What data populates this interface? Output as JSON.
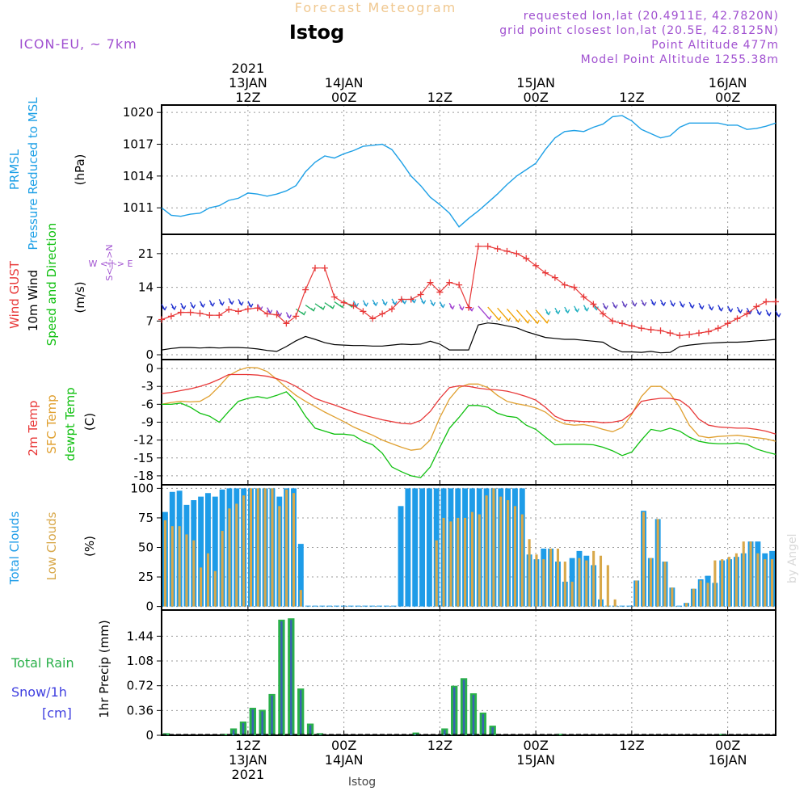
{
  "header": {
    "title": "Forecast Meteogram",
    "location": "Istog",
    "model": "ICON-EU, ~ 7km",
    "requested_point": "requested lon,lat (20.4911E, 42.7820N)",
    "grid_point": "grid point closest lon,lat (20.5E, 42.8125N)",
    "point_altitude": "Point Altitude 477m",
    "model_altitude": "Model Point Altitude 1255.38m",
    "credit": "by Angel",
    "footer_location": "Istog"
  },
  "colors": {
    "pressure": "#1ea0e6",
    "gust": "#e83838",
    "wind": "#000000",
    "temp2m": "#e83838",
    "sfc": "#e0a030",
    "dewpt": "#10c010",
    "total_clouds": "#1e9ce8",
    "low_clouds": "#d8a84a",
    "rain": "#2ab04a",
    "snow": "#4040e0",
    "meta": "#a050d0"
  },
  "time_axis": {
    "start_hour": 0,
    "end_hour": 64,
    "top_labels": [
      {
        "hour": 9,
        "lines": [
          "2021",
          "13JAN",
          "12Z"
        ]
      },
      {
        "hour": 19,
        "lines": [
          "14JAN",
          "00Z"
        ]
      },
      {
        "hour": 29,
        "lines": [
          "12Z"
        ]
      },
      {
        "hour": 39,
        "lines": [
          "15JAN",
          "00Z"
        ]
      },
      {
        "hour": 49,
        "lines": [
          "12Z"
        ]
      },
      {
        "hour": 59,
        "lines": [
          "16JAN",
          "00Z"
        ]
      }
    ],
    "bottom_labels": [
      {
        "hour": 9,
        "lines": [
          "12Z",
          "13JAN",
          "2021"
        ]
      },
      {
        "hour": 19,
        "lines": [
          "00Z",
          "14JAN"
        ]
      },
      {
        "hour": 29,
        "lines": [
          "12Z"
        ]
      },
      {
        "hour": 39,
        "lines": [
          "00Z",
          "15JAN"
        ]
      },
      {
        "hour": 49,
        "lines": [
          "12Z"
        ]
      },
      {
        "hour": 59,
        "lines": [
          "00Z",
          "16JAN"
        ]
      }
    ]
  },
  "chart_data": [
    {
      "type": "line",
      "name": "pressure",
      "ylabels": [
        {
          "text": "PRMSL",
          "color": "#1ea0e6"
        },
        {
          "text": "Pressure Reduced to MSL",
          "color": "#1ea0e6"
        },
        {
          "text": "(hPa)",
          "color": "#000000"
        }
      ],
      "ylim": [
        1008.5,
        1020.7
      ],
      "yticks": [
        1011,
        1014,
        1017,
        1020
      ],
      "series": [
        {
          "name": "PRMSL",
          "values": [
            1011.0,
            1010.3,
            1010.2,
            1010.4,
            1010.5,
            1011.0,
            1011.2,
            1011.7,
            1011.9,
            1012.4,
            1012.3,
            1012.1,
            1012.3,
            1012.6,
            1013.1,
            1014.4,
            1015.3,
            1015.9,
            1015.7,
            1016.1,
            1016.4,
            1016.8,
            1016.9,
            1017.0,
            1016.5,
            1015.3,
            1014.0,
            1013.1,
            1012.0,
            1011.3,
            1010.5,
            1009.2,
            1010.0,
            1010.7,
            1011.5,
            1012.3,
            1013.2,
            1014.0,
            1014.6,
            1015.2,
            1016.5,
            1017.6,
            1018.2,
            1018.3,
            1018.2,
            1018.6,
            1018.9,
            1019.6,
            1019.7,
            1019.2,
            1018.4,
            1018.0,
            1017.6,
            1017.8,
            1018.6,
            1019.0,
            1019.0,
            1019.0,
            1019.0,
            1018.8,
            1018.8,
            1018.4,
            1018.5,
            1018.7,
            1019.0
          ]
        }
      ]
    },
    {
      "type": "line",
      "name": "wind",
      "ylabels": [
        {
          "text": "Wind GUST",
          "color": "#e83838"
        },
        {
          "text": "10m Wind",
          "color": "#000000"
        },
        {
          "text": "Speed and Direction",
          "color": "#10c010"
        },
        {
          "text": "(m/s)",
          "color": "#000000"
        }
      ],
      "ylim": [
        -1,
        25
      ],
      "yticks": [
        0,
        7,
        14,
        21
      ],
      "compass": [
        "N",
        "W",
        "E",
        "S"
      ],
      "series": [
        {
          "name": "Wind GUST",
          "values": [
            7.3,
            8.0,
            8.8,
            8.8,
            8.6,
            8.2,
            8.2,
            9.4,
            9.0,
            9.5,
            9.7,
            8.5,
            8.3,
            6.5,
            8.0,
            13.5,
            18.0,
            18.0,
            12.0,
            10.8,
            10.2,
            9.0,
            7.5,
            8.5,
            9.5,
            11.5,
            11.5,
            12.5,
            15.0,
            13.0,
            15.0,
            14.5,
            9.8,
            22.5,
            22.5,
            22.0,
            21.5,
            21.0,
            20.0,
            18.5,
            17.0,
            16.0,
            14.5,
            14.0,
            12.0,
            10.5,
            8.5,
            7.0,
            6.5,
            6.0,
            5.5,
            5.2,
            5.0,
            4.5,
            4.0,
            4.2,
            4.5,
            4.8,
            5.5,
            6.5,
            7.5,
            8.5,
            10.0,
            11.0,
            11.0
          ]
        },
        {
          "name": "10m Wind",
          "values": [
            1.0,
            1.3,
            1.5,
            1.5,
            1.4,
            1.5,
            1.4,
            1.5,
            1.5,
            1.4,
            1.2,
            0.9,
            0.7,
            1.7,
            2.9,
            3.8,
            3.2,
            2.5,
            2.1,
            2.0,
            1.9,
            1.9,
            1.8,
            1.8,
            2.0,
            2.2,
            2.1,
            2.2,
            2.8,
            2.2,
            1.0,
            1.0,
            1.0,
            6.2,
            6.6,
            6.4,
            6.0,
            5.6,
            4.8,
            4.2,
            3.6,
            3.4,
            3.2,
            3.2,
            3.0,
            2.8,
            2.6,
            1.4,
            0.6,
            0.6,
            0.5,
            0.7,
            0.4,
            0.5,
            1.7,
            2.0,
            2.2,
            2.4,
            2.5,
            2.6,
            2.6,
            2.7,
            2.9,
            3.0,
            3.2
          ]
        },
        {
          "name": "Speed and Direction",
          "values": [
            10.5,
            10.6,
            10.7,
            10.9,
            11.1,
            11.3,
            11.5,
            11.7,
            11.5,
            11.1,
            10.5,
            9.8,
            9.2,
            8.8,
            9.5,
            10.3,
            10.6,
            10.8,
            11.0,
            11.1,
            11.2,
            11.3,
            11.4,
            11.5,
            11.6,
            11.8,
            12.0,
            11.8,
            11.4,
            11.0,
            10.7,
            10.5,
            10.3,
            10.1,
            9.9,
            9.7,
            9.5,
            9.3,
            9.2,
            9.3,
            9.5,
            9.7,
            9.9,
            10.1,
            10.3,
            10.5,
            10.7,
            10.9,
            11.1,
            11.3,
            11.4,
            11.5,
            11.4,
            11.3,
            11.1,
            10.9,
            10.7,
            10.5,
            10.3,
            10.1,
            9.9,
            9.7,
            9.5,
            9.3,
            9.1
          ]
        }
      ]
    },
    {
      "type": "line",
      "name": "temperature",
      "ylabels": [
        {
          "text": "2m Temp",
          "color": "#e83838"
        },
        {
          "text": "SFC Temp",
          "color": "#e0a030"
        },
        {
          "text": "dewpt Temp",
          "color": "#10c010"
        },
        {
          "text": "(C)",
          "color": "#000000"
        }
      ],
      "ylim": [
        -19.5,
        1.5
      ],
      "yticks": [
        0,
        -3,
        -6,
        -9,
        -12,
        -15,
        -18
      ],
      "series": [
        {
          "name": "2m Temp",
          "values": [
            -4.2,
            -4.0,
            -3.7,
            -3.4,
            -3.0,
            -2.5,
            -1.8,
            -1.0,
            -1.0,
            -1.0,
            -1.1,
            -1.3,
            -1.7,
            -2.2,
            -3.0,
            -4.0,
            -5.0,
            -5.6,
            -6.1,
            -6.7,
            -7.3,
            -7.8,
            -8.2,
            -8.6,
            -8.9,
            -9.2,
            -9.3,
            -8.7,
            -7.2,
            -5.0,
            -3.2,
            -2.9,
            -3.0,
            -3.3,
            -3.5,
            -3.6,
            -3.8,
            -4.2,
            -4.7,
            -5.3,
            -6.5,
            -8.0,
            -8.7,
            -8.8,
            -8.9,
            -8.9,
            -9.1,
            -9.0,
            -8.7,
            -7.5,
            -5.5,
            -5.2,
            -5.0,
            -5.0,
            -5.3,
            -6.5,
            -8.5,
            -9.5,
            -9.8,
            -9.9,
            -10.0,
            -10.0,
            -10.2,
            -10.5,
            -11.0
          ]
        },
        {
          "name": "SFC Temp",
          "values": [
            -6.0,
            -5.7,
            -5.5,
            -5.6,
            -5.5,
            -4.6,
            -3.0,
            -1.2,
            -0.3,
            0.2,
            0.1,
            -0.5,
            -1.8,
            -3.2,
            -4.5,
            -5.5,
            -6.4,
            -7.3,
            -8.1,
            -8.9,
            -9.8,
            -10.5,
            -11.2,
            -12.0,
            -12.6,
            -13.2,
            -13.7,
            -13.5,
            -12.0,
            -8.2,
            -5.1,
            -3.2,
            -2.6,
            -2.6,
            -3.2,
            -4.5,
            -5.5,
            -5.9,
            -6.2,
            -6.6,
            -7.3,
            -8.6,
            -9.3,
            -9.5,
            -9.4,
            -9.7,
            -10.2,
            -10.6,
            -9.9,
            -7.7,
            -4.7,
            -3.0,
            -3.0,
            -4.2,
            -6.5,
            -9.5,
            -11.3,
            -11.6,
            -11.4,
            -11.3,
            -11.2,
            -11.4,
            -11.6,
            -11.8,
            -12.2
          ]
        },
        {
          "name": "dewpt Temp",
          "values": [
            -6.0,
            -6.0,
            -5.8,
            -6.5,
            -7.5,
            -8.0,
            -9.0,
            -7.2,
            -5.5,
            -5.0,
            -4.7,
            -5.0,
            -4.5,
            -3.9,
            -5.5,
            -8.0,
            -10.0,
            -10.5,
            -11.0,
            -11.0,
            -11.2,
            -12.2,
            -12.8,
            -14.2,
            -16.5,
            -17.3,
            -18.0,
            -18.3,
            -16.5,
            -13.2,
            -10.0,
            -8.2,
            -6.2,
            -6.2,
            -6.5,
            -7.5,
            -8.0,
            -8.2,
            -9.5,
            -10.2,
            -11.5,
            -12.8,
            -12.7,
            -12.7,
            -12.7,
            -12.8,
            -13.2,
            -13.8,
            -14.6,
            -14.0,
            -12.0,
            -10.2,
            -10.5,
            -10.0,
            -10.5,
            -11.5,
            -12.2,
            -12.5,
            -12.6,
            -12.6,
            -12.5,
            -12.7,
            -13.5,
            -14.0,
            -14.4
          ]
        }
      ]
    },
    {
      "type": "bar",
      "name": "clouds",
      "ylabels": [
        {
          "text": "Total Clouds",
          "color": "#1e9ce8"
        },
        {
          "text": "Low Clouds",
          "color": "#d8a84a"
        },
        {
          "text": "(%)",
          "color": "#000000"
        }
      ],
      "ylim": [
        -3,
        103
      ],
      "yticks": [
        0,
        25,
        50,
        75,
        100
      ],
      "series": [
        {
          "name": "Total Clouds",
          "values": [
            80,
            97,
            98,
            86,
            90,
            93,
            96,
            93,
            99,
            100,
            100,
            100,
            100,
            100,
            100,
            100,
            93,
            100,
            100,
            53,
            0,
            0,
            0,
            0,
            0,
            0,
            0,
            0,
            0,
            0,
            0,
            0,
            0,
            85,
            100,
            100,
            100,
            100,
            100,
            100,
            100,
            100,
            100,
            100,
            100,
            100,
            100,
            100,
            100,
            100,
            100,
            44,
            40,
            49,
            49,
            38,
            21,
            41,
            47,
            43,
            35,
            6,
            0,
            0,
            0,
            0,
            22,
            81,
            41,
            74,
            38,
            16,
            0,
            3,
            15,
            23,
            26,
            20,
            39,
            40,
            42,
            45,
            55,
            55,
            45,
            47
          ]
        },
        {
          "name": "Low Clouds",
          "values": [
            73,
            68,
            68,
            61,
            56,
            33,
            45,
            30,
            64,
            83,
            87,
            94,
            100,
            100,
            100,
            100,
            85,
            99,
            96,
            14,
            0,
            0,
            0,
            0,
            0,
            0,
            0,
            0,
            0,
            0,
            0,
            0,
            0,
            0,
            0,
            0,
            0,
            0,
            56,
            75,
            72,
            75,
            75,
            80,
            78,
            94,
            100,
            93,
            90,
            85,
            78,
            57,
            44,
            40,
            49,
            49,
            38,
            21,
            41,
            39,
            47,
            43,
            35,
            6,
            0,
            0,
            22,
            80,
            41,
            74,
            38,
            16,
            0,
            3,
            15,
            22,
            20,
            39,
            40,
            42,
            45,
            55,
            55,
            45,
            40,
            40
          ]
        }
      ]
    },
    {
      "type": "bar",
      "name": "precip",
      "ylabels": [
        {
          "text": "Total  Rain",
          "color": "#2ab04a"
        },
        {
          "text": "Snow/1h",
          "color": "#4040e0"
        },
        {
          "text": "[cm]",
          "color": "#4040e0"
        },
        {
          "text": "1hr Precip (mm)",
          "color": "#000000"
        }
      ],
      "ylim": [
        0,
        1.82
      ],
      "yticks": [
        0,
        0.36,
        0.72,
        1.08,
        1.44
      ],
      "series": [
        {
          "name": "Total Rain",
          "values": [
            0.03,
            0,
            0,
            0,
            0,
            0,
            0.02,
            0.1,
            0.2,
            0.4,
            0.37,
            0.6,
            1.68,
            1.7,
            0.68,
            0.17,
            0.03,
            0,
            0,
            0,
            0,
            0,
            0,
            0,
            0,
            0,
            0.04,
            0,
            0,
            0.1,
            0.72,
            0.83,
            0.61,
            0.33,
            0.14,
            0,
            0,
            0,
            0,
            0,
            0,
            0.02,
            0,
            0,
            0,
            0,
            0,
            0,
            0,
            0,
            0,
            0,
            0,
            0,
            0,
            0,
            0,
            0,
            0.02,
            0,
            0,
            0,
            0,
            0,
            0
          ]
        }
      ]
    }
  ]
}
